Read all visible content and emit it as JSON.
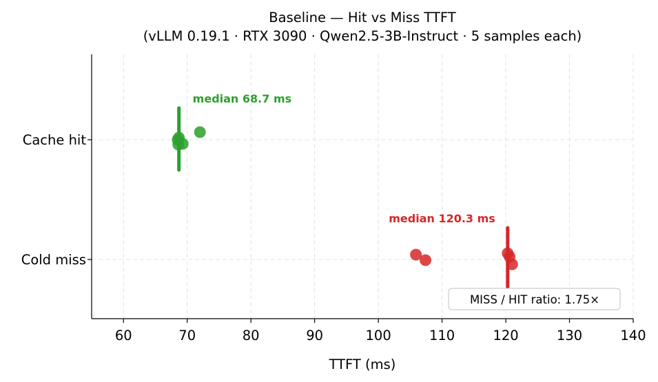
{
  "chart_data": {
    "type": "scatter",
    "title": "Baseline — Hit vs Miss TTFT",
    "subtitle": "(vLLM 0.19.1 · RTX 3090 · Qwen2.5-3B-Instruct · 5 samples each)",
    "xlabel": "TTFT (ms)",
    "ylabel": "",
    "xlim": [
      55,
      140
    ],
    "xticks": [
      60,
      70,
      80,
      90,
      100,
      110,
      120,
      130,
      140
    ],
    "categories": [
      "Cache hit",
      "Cold miss"
    ],
    "grid": true,
    "series": [
      {
        "category": "Cache hit",
        "color": "#2ca02c",
        "values": [
          68.5,
          69.3,
          68.7,
          68.6,
          72.0
        ],
        "median": 68.7,
        "median_label": "median 68.7 ms"
      },
      {
        "category": "Cold miss",
        "color": "#d62728",
        "values": [
          105.9,
          107.4,
          120.3,
          121.0,
          120.6
        ],
        "median": 120.3,
        "median_label": "median 120.3 ms"
      }
    ],
    "annotation": "MISS / HIT ratio: 1.75×"
  }
}
